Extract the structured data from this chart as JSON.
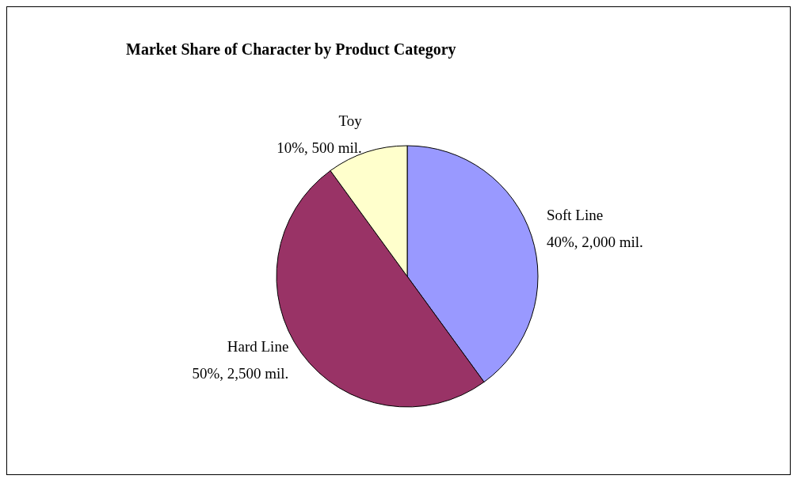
{
  "chart_data": {
    "type": "pie",
    "title": "Market Share of Character by Product Category",
    "categories": [
      "Soft Line",
      "Hard Line",
      "Toy"
    ],
    "values": [
      2000,
      2500,
      500
    ],
    "value_labels": [
      "40%, 2,000 mil.",
      "50%, 2,500 mil.",
      "10%, 500 mil."
    ],
    "colors": [
      "#9999ff",
      "#993366",
      "#ffffcc"
    ],
    "legend": false
  }
}
